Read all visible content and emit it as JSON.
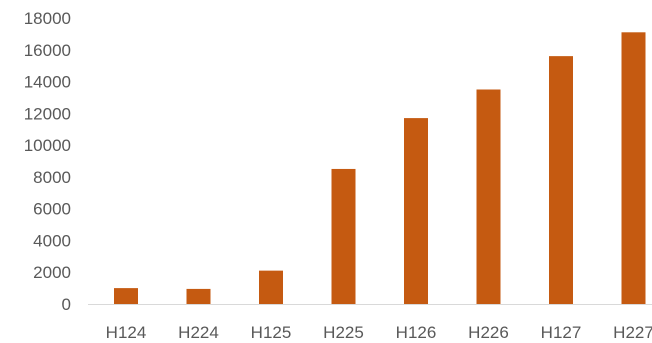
{
  "chart_data": {
    "type": "bar",
    "categories": [
      "H124",
      "H224",
      "H125",
      "H225",
      "H126",
      "H226",
      "H127",
      "H227"
    ],
    "values": [
      1000,
      950,
      2100,
      8500,
      11700,
      13500,
      15600,
      17100
    ],
    "ylim": [
      0,
      18000
    ],
    "yticks": [
      0,
      2000,
      4000,
      6000,
      8000,
      10000,
      12000,
      14000,
      16000,
      18000
    ],
    "grid": false,
    "legend": "none",
    "title": "",
    "xlabel": "",
    "ylabel": "",
    "colors": {
      "bar": "#C55A11",
      "axis": "#D9D9D9",
      "text": "#595959"
    }
  }
}
